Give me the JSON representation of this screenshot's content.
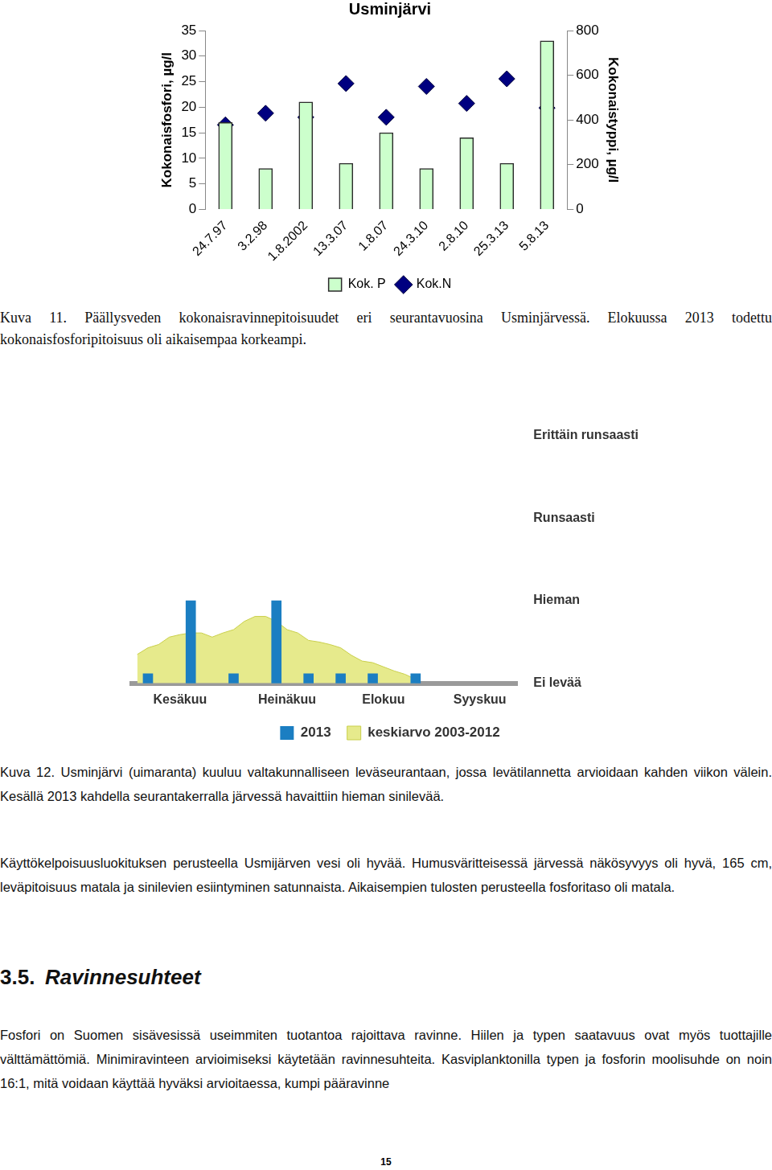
{
  "chart_data": [
    {
      "type": "bar",
      "title": "Usminjärvi",
      "categories": [
        "24.7.97",
        "3.2.98",
        "1.8.2002",
        "13.3.07",
        "1.8.07",
        "24.3.10",
        "2.8.10",
        "25.3.13",
        "5.8.13"
      ],
      "series": [
        {
          "name": "Kok. P",
          "type": "bar",
          "color": "#ccffcc",
          "values": [
            17,
            8,
            21,
            9,
            15,
            8,
            14,
            9,
            33
          ]
        },
        {
          "name": "Kok.N",
          "type": "scatter",
          "marker": "diamond",
          "color": "#000080",
          "axis": "y2",
          "values": [
            378,
            430,
            412,
            563,
            412,
            550,
            474,
            584,
            454
          ]
        }
      ],
      "y_label": "Kokonaisfosfori, µg/l",
      "y2_label": "Kokonaistyppi, µg/l",
      "ylim": [
        0,
        35
      ],
      "yticks": [
        0,
        5,
        10,
        15,
        20,
        25,
        30,
        35
      ],
      "y2lim": [
        0,
        800
      ],
      "y2ticks": [
        0,
        200,
        400,
        600,
        800
      ],
      "grid": false,
      "legend": "bottom"
    },
    {
      "type": "bar",
      "categories": [
        null,
        null,
        null,
        null,
        "Kesäkuu",
        null,
        null,
        null,
        null,
        null,
        null,
        null,
        null,
        null,
        "Heinäkuu",
        null,
        null,
        null,
        null,
        null,
        null,
        null,
        null,
        "Elokuu",
        null,
        null,
        null,
        null,
        null,
        null,
        null,
        null,
        "Syyskuu",
        null,
        null,
        null
      ],
      "series": [
        {
          "name": "2013",
          "type": "bar",
          "color": "#1b7ec2",
          "values": [
            null,
            0,
            null,
            null,
            null,
            1,
            null,
            null,
            null,
            0,
            null,
            null,
            null,
            1,
            null,
            null,
            0,
            null,
            null,
            0,
            null,
            null,
            0,
            null,
            null,
            null,
            0,
            null,
            null,
            null,
            null,
            null,
            null,
            null,
            null,
            null
          ]
        },
        {
          "name": "keskiarvo 2003-2012",
          "type": "area",
          "color": "#e6ea8c",
          "values": [
            0.35,
            0.43,
            0.47,
            0.56,
            0.59,
            0.61,
            0.61,
            0.56,
            0.61,
            0.65,
            0.75,
            0.81,
            0.81,
            0.75,
            0.65,
            0.61,
            0.52,
            0.5,
            0.47,
            0.43,
            0.34,
            0.27,
            0.25,
            0.2,
            0.15,
            0.11,
            0.05,
            null,
            null,
            null,
            null,
            null,
            null,
            null,
            null,
            null
          ]
        }
      ],
      "ylim": [
        0,
        3
      ],
      "yticks": [
        {
          "value": 0,
          "label": "Ei levää"
        },
        {
          "value": 1,
          "label": "Hieman"
        },
        {
          "value": 2,
          "label": "Runsaasti"
        },
        {
          "value": 3,
          "label": "Erittäin runsaasti"
        }
      ],
      "grid": false,
      "legend": "bottom"
    }
  ],
  "document": {
    "figure_11_caption": "Kuva 11. Päällysveden kokonaisravinnepitoisuudet eri seurantavuosina Usminjärvessä. Elokuussa 2013 todettu kokonaisfosforipitoisuus oli aikaisempaa korkeampi.",
    "figure_12_caption": "Kuva 12. Usminjärvi (uimaranta) kuuluu valtakunnalliseen leväseurantaan, jossa levätilannetta arvioidaan kahden viikon välein. Kesällä 2013 kahdella seurantakerralla järvessä havaittiin hieman sinilevää.",
    "paragraph_1": "Käyttökelpoisuusluokituksen perusteella Usmijärven vesi oli hyvää. Humusväritteisessä järvessä näkösyvyys oli hyvä, 165 cm, leväpitoisuus matala ja sinilevien esiintyminen satunnaista. Aikaisempien tulosten perusteella fosforitaso oli matala.",
    "section_number": "3.5.",
    "section_title": "Ravinnesuhteet",
    "paragraph_2": "Fosfori on Suomen sisävesissä useimmiten tuotantoa rajoittava ravinne. Hiilen ja typen saatavuus ovat myös tuottajille välttämättömiä. Minimiravinteen arvioimiseksi käytetään ravinnesuhteita. Kasviplanktonilla typen ja fosforin moolisuhde on noin 16:1, mitä voidaan käyttää hyväksi arvioitaessa, kumpi pääravinne",
    "page_number": 15
  }
}
